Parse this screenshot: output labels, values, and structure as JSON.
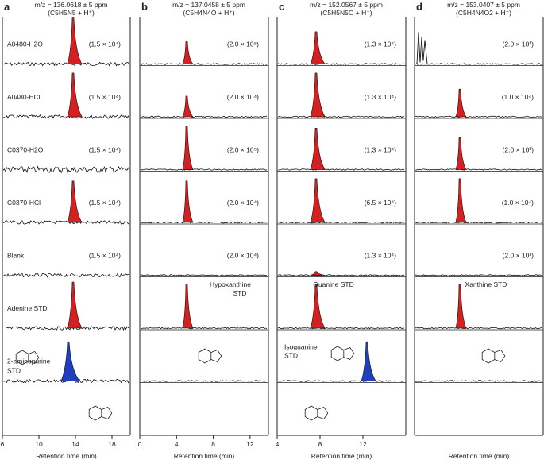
{
  "chart_data": [
    {
      "panel": "a",
      "header": [
        "m/z = 136.0618 ± 5 ppm",
        "(C5H5N5 + H⁺)"
      ],
      "type": "line",
      "xlabel": "Retention time (min)",
      "xlim": [
        6,
        20
      ],
      "ticks": [
        "6",
        "10",
        "14",
        "18"
      ],
      "peak_rt": 13.9,
      "rows": [
        {
          "label": "A0480-H2O",
          "scale": "(1.5 × 10⁴)",
          "peak": 1.0
        },
        {
          "label": "A0480-HCl",
          "scale": "(1.5 × 10⁴)",
          "peak": 0.95
        },
        {
          "label": "C0370-H2O",
          "scale": "(1.5 × 10⁴)",
          "peak": 0.0
        },
        {
          "label": "C0370-HCl",
          "scale": "(1.5 × 10⁴)",
          "peak": 0.9
        },
        {
          "label": "Blank",
          "scale": "(1.5 × 10⁴)",
          "peak": 0.0
        },
        {
          "label": "Adenine STD",
          "scale": "",
          "peak": 1.0
        },
        {
          "label": "2-aminopurine",
          "label2": "STD",
          "scale": "",
          "peak": 0.85
        }
      ]
    },
    {
      "panel": "b",
      "header": [
        "m/z = 137.0458 ± 5 ppm",
        "(C5H4N4O + H⁺)"
      ],
      "type": "line",
      "xlabel": "Retention time (min)",
      "xlim": [
        0,
        14
      ],
      "ticks": [
        "0",
        "4",
        "8",
        "12"
      ],
      "peak_rt": 4.9,
      "rows": [
        {
          "label": "",
          "scale": "(2.0 × 10⁵)",
          "peak": 0.5
        },
        {
          "label": "",
          "scale": "(2.0 × 10⁴)",
          "peak": 0.45
        },
        {
          "label": "",
          "scale": "(2.0 × 10⁵)",
          "peak": 0.95
        },
        {
          "label": "",
          "scale": "(2.0 × 10⁴)",
          "peak": 0.9
        },
        {
          "label": "",
          "scale": "(2.0 × 10⁴)",
          "peak": 0.0
        },
        {
          "label": "Hypoxanthine",
          "label2": "STD",
          "scale": "",
          "peak": 0.95
        },
        {
          "label": "",
          "scale": "",
          "peak": 0.0
        }
      ]
    },
    {
      "panel": "c",
      "header": [
        "m/z = 152.0567 ± 5 ppm",
        "(C5H5N5O + H⁺)"
      ],
      "type": "line",
      "xlabel": "Retention time (min)",
      "xlim": [
        4,
        16
      ],
      "ticks": [
        "4",
        "8",
        "12"
      ],
      "peak_rt": 8.1,
      "rows": [
        {
          "label": "",
          "scale": "(1.3 × 10⁴)",
          "peak": 0.7
        },
        {
          "label": "",
          "scale": "(1.3 × 10⁴)",
          "peak": 0.95
        },
        {
          "label": "",
          "scale": "(1.3 × 10⁴)",
          "peak": 0.9
        },
        {
          "label": "",
          "scale": "(6.5 × 10⁴)",
          "peak": 0.95
        },
        {
          "label": "",
          "scale": "(1.3 × 10⁴)",
          "peak": 0.08
        },
        {
          "label": "Guanine STD",
          "scale": "",
          "peak": 0.95
        },
        {
          "label": "Isoguanine",
          "label2": "STD",
          "scale": "",
          "peak": 0.85
        }
      ]
    },
    {
      "panel": "d",
      "header": [
        "m/z = 153.0407 ± 5 ppm",
        "(C5H4N4O2 + H⁺)"
      ],
      "type": "line",
      "xlabel": "Retention time (min)",
      "peak_rt": 0.5,
      "rows": [
        {
          "label": "",
          "scale": "(2.0 × 10³)",
          "peak": 0.0
        },
        {
          "label": "",
          "scale": "(1.0 × 10⁴)",
          "peak": 0.6
        },
        {
          "label": "",
          "scale": "(2.0 × 10³)",
          "peak": 0.7
        },
        {
          "label": "",
          "scale": "(1.0 × 10⁴)",
          "peak": 0.95
        },
        {
          "label": "",
          "scale": "(2.0 × 10³)",
          "peak": 0.0
        },
        {
          "label": "Xanthine STD",
          "scale": "",
          "peak": 0.95
        },
        {
          "label": "",
          "scale": "",
          "peak": 0.0
        }
      ]
    }
  ],
  "colors": {
    "sample_peak": "#d42020",
    "std_peak_blue": "#1f3fbf",
    "trace": "#111111"
  }
}
